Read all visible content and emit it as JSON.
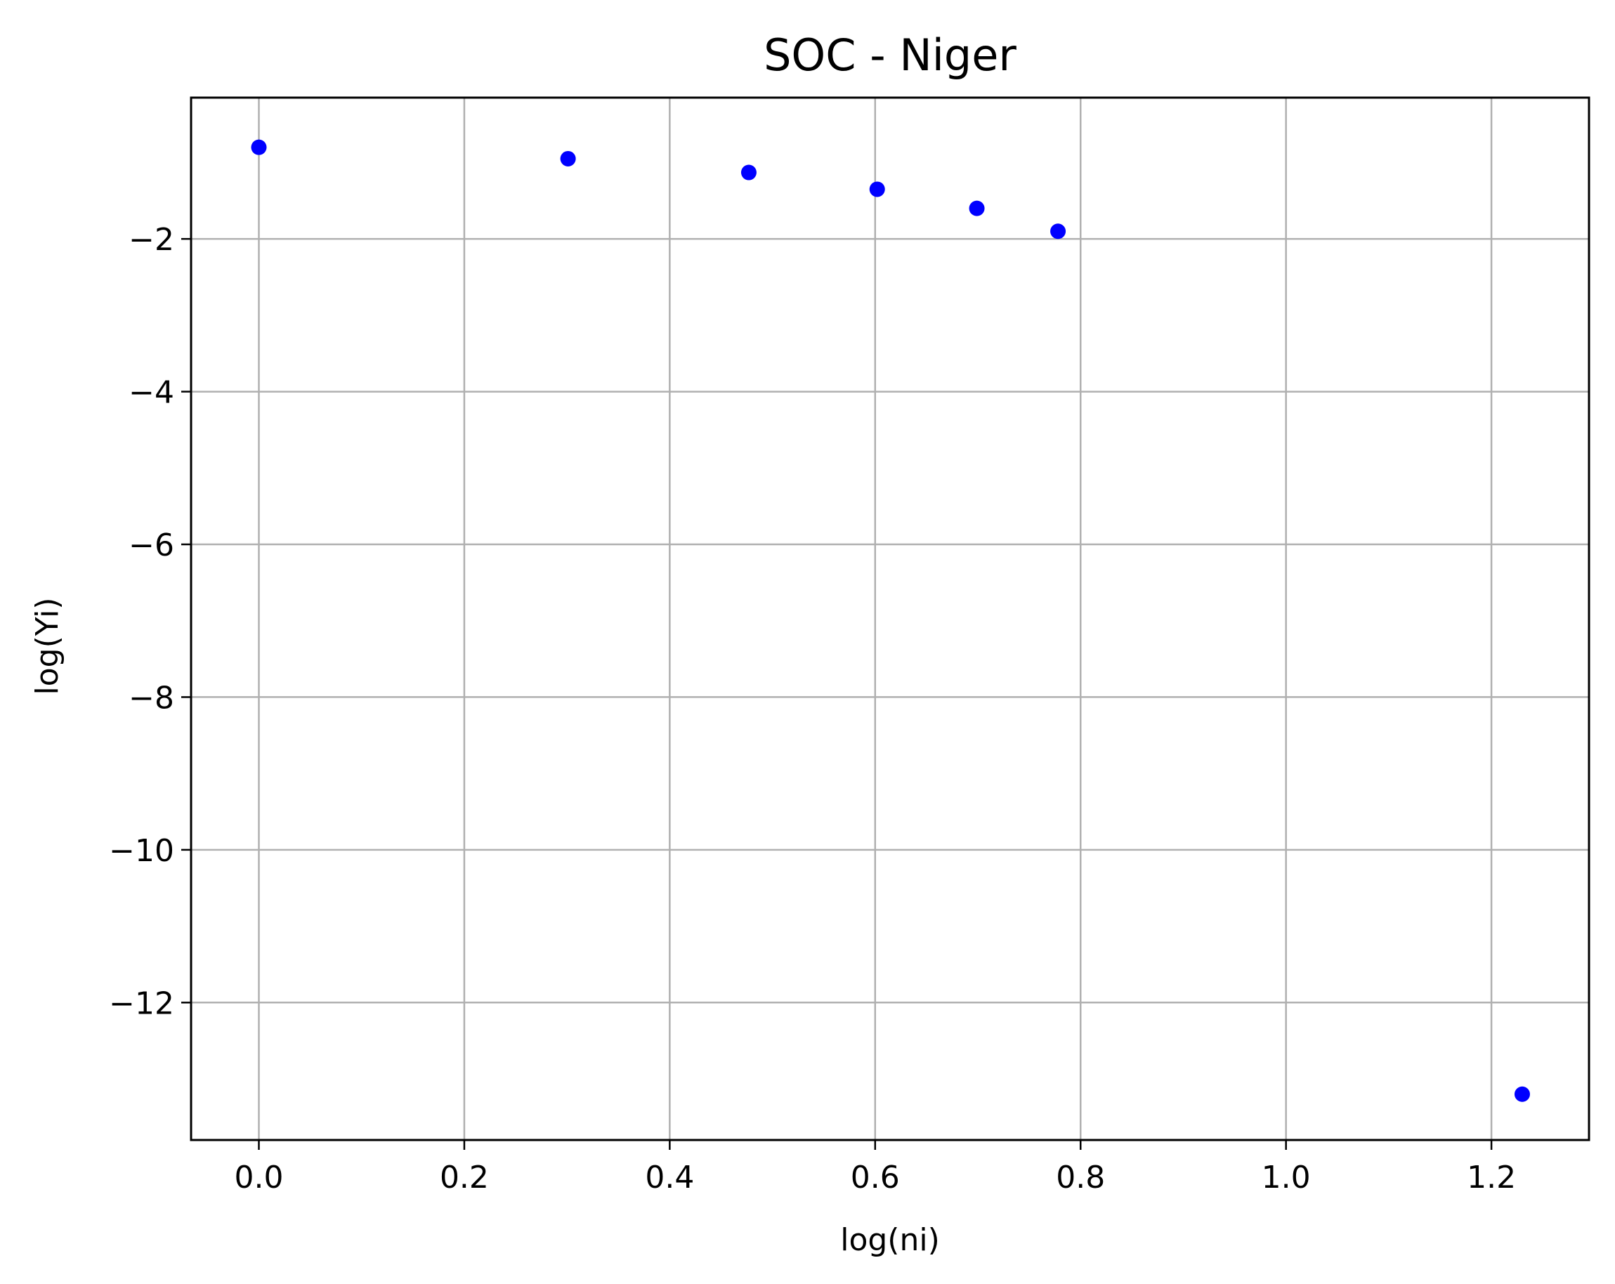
{
  "chart_data": {
    "type": "scatter",
    "title": "SOC - Niger",
    "xlabel": "log(ni)",
    "ylabel": "log(Yi)",
    "xlim": [
      -0.066,
      1.295
    ],
    "ylim": [
      -13.8,
      -0.15
    ],
    "grid": true,
    "x_ticks": [
      0.0,
      0.2,
      0.4,
      0.6,
      0.8,
      1.0,
      1.2
    ],
    "x_tick_labels": [
      "0.0",
      "0.2",
      "0.4",
      "0.6",
      "0.8",
      "1.0",
      "1.2"
    ],
    "y_ticks": [
      -2,
      -4,
      -6,
      -8,
      -10,
      -12
    ],
    "y_tick_labels": [
      "−2",
      "−4",
      "−6",
      "−8",
      "−10",
      "−12"
    ],
    "marker_color": "#0000ff",
    "grid_color": "#b0b0b0",
    "points": [
      {
        "x": 0.0,
        "y": -0.8
      },
      {
        "x": 0.301,
        "y": -0.95
      },
      {
        "x": 0.477,
        "y": -1.13
      },
      {
        "x": 0.602,
        "y": -1.35
      },
      {
        "x": 0.699,
        "y": -1.6
      },
      {
        "x": 0.778,
        "y": -1.9
      },
      {
        "x": 1.23,
        "y": -13.2
      }
    ]
  }
}
